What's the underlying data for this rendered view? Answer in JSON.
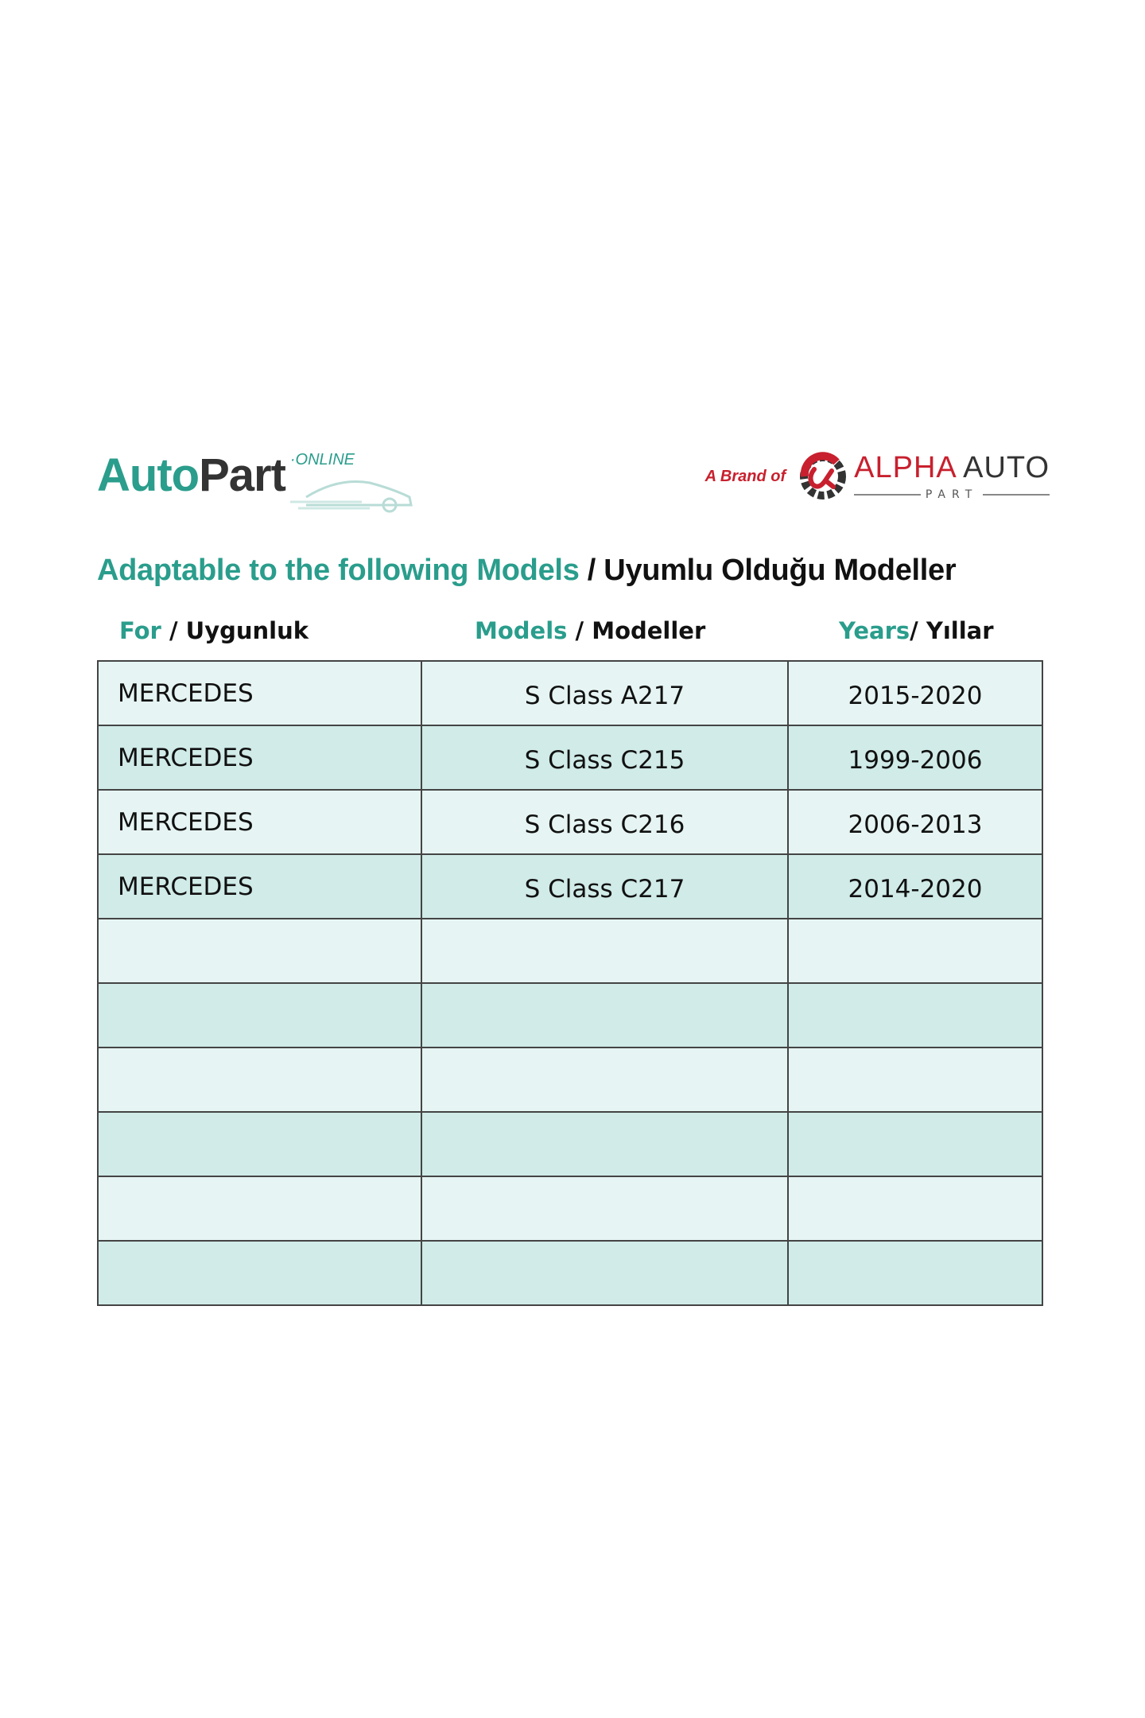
{
  "logo_left": {
    "main_1": "Auto",
    "main_2": "Part",
    "suffix": "·ONLINE"
  },
  "logo_right": {
    "prefix": "A Brand of",
    "name_1": "ALPHA",
    "name_2": "AUTO",
    "sub": "PART",
    "brand_color": "#c8202e"
  },
  "title": {
    "en": "Adaptable to the following Models",
    "tr": " / Uyumlu Olduğu Modeller"
  },
  "headers": [
    {
      "en": "For",
      "tr": " / Uygunluk"
    },
    {
      "en": "Models",
      "tr": " / Modeller"
    },
    {
      "en": "Years",
      "tr": "/ Yıllar"
    }
  ],
  "rows": [
    [
      "MERCEDES",
      "S Class A217",
      "2015-2020"
    ],
    [
      "MERCEDES",
      "S Class C215",
      "1999-2006"
    ],
    [
      "MERCEDES",
      "S Class C216",
      "2006-2013"
    ],
    [
      "MERCEDES",
      "S Class C217",
      "2014-2020"
    ],
    [
      "",
      "",
      ""
    ],
    [
      "",
      "",
      ""
    ],
    [
      "",
      "",
      ""
    ],
    [
      "",
      "",
      ""
    ],
    [
      "",
      "",
      ""
    ],
    [
      "",
      "",
      ""
    ]
  ],
  "colors": {
    "accent": "#2a9d8c",
    "row_light": "#e6f5f3",
    "row_dark": "#d0ebe8"
  }
}
